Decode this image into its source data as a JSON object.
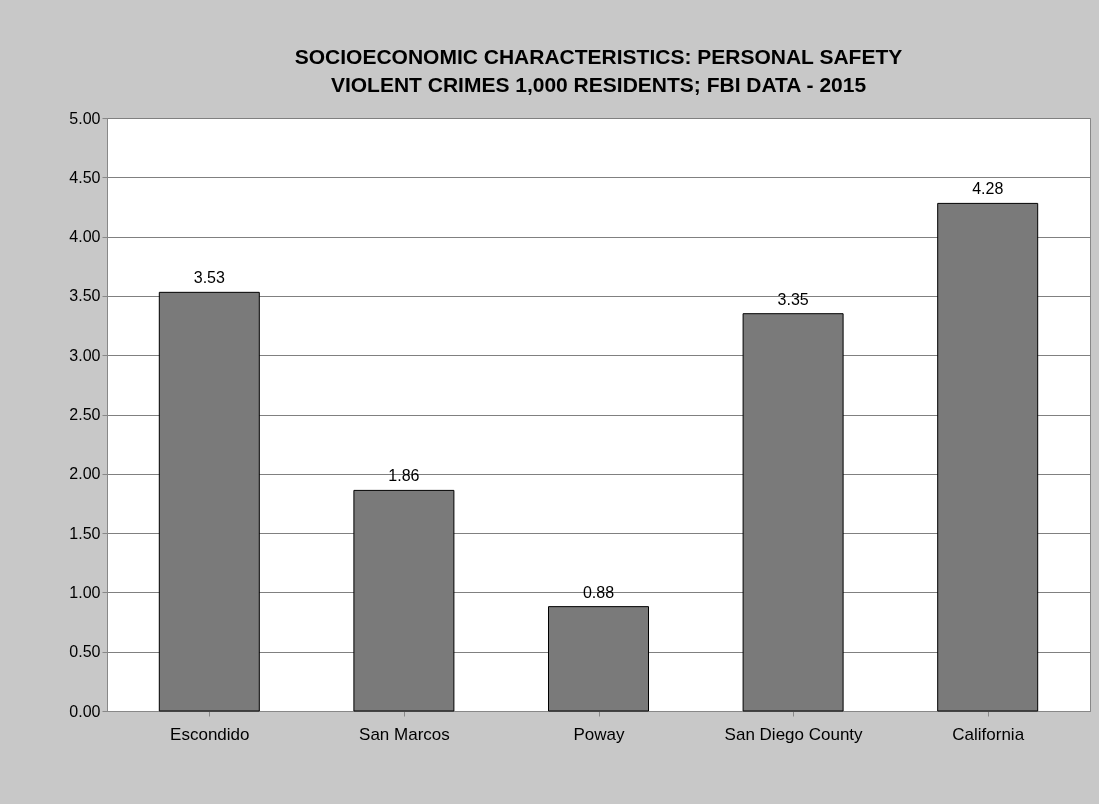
{
  "chart_data": {
    "type": "bar",
    "title": "SOCIOECONOMIC CHARACTERISTICS: PERSONAL SAFETY\nVIOLENT CRIMES 1,000 RESIDENTS; FBI DATA - 2015",
    "categories": [
      "Escondido",
      "San Marcos",
      "Poway",
      "San Diego County",
      "California"
    ],
    "values": [
      3.53,
      1.86,
      0.88,
      3.35,
      4.28
    ],
    "color": "#7a7a7a",
    "ylim": [
      0,
      5
    ],
    "yticks": [
      {
        "value": 0,
        "label": "0.00"
      },
      {
        "value": 0.5,
        "label": "0.50"
      },
      {
        "value": 1,
        "label": "1.00"
      },
      {
        "value": 1.5,
        "label": "1.50"
      },
      {
        "value": 2,
        "label": "2.00"
      },
      {
        "value": 2.5,
        "label": "2.50"
      },
      {
        "value": 3,
        "label": "3.00"
      },
      {
        "value": 3.5,
        "label": "3.50"
      },
      {
        "value": 4,
        "label": "4.00"
      },
      {
        "value": 4.5,
        "label": "4.50"
      },
      {
        "value": 5,
        "label": "5.00"
      }
    ],
    "grid": "y",
    "data_labels": true
  }
}
